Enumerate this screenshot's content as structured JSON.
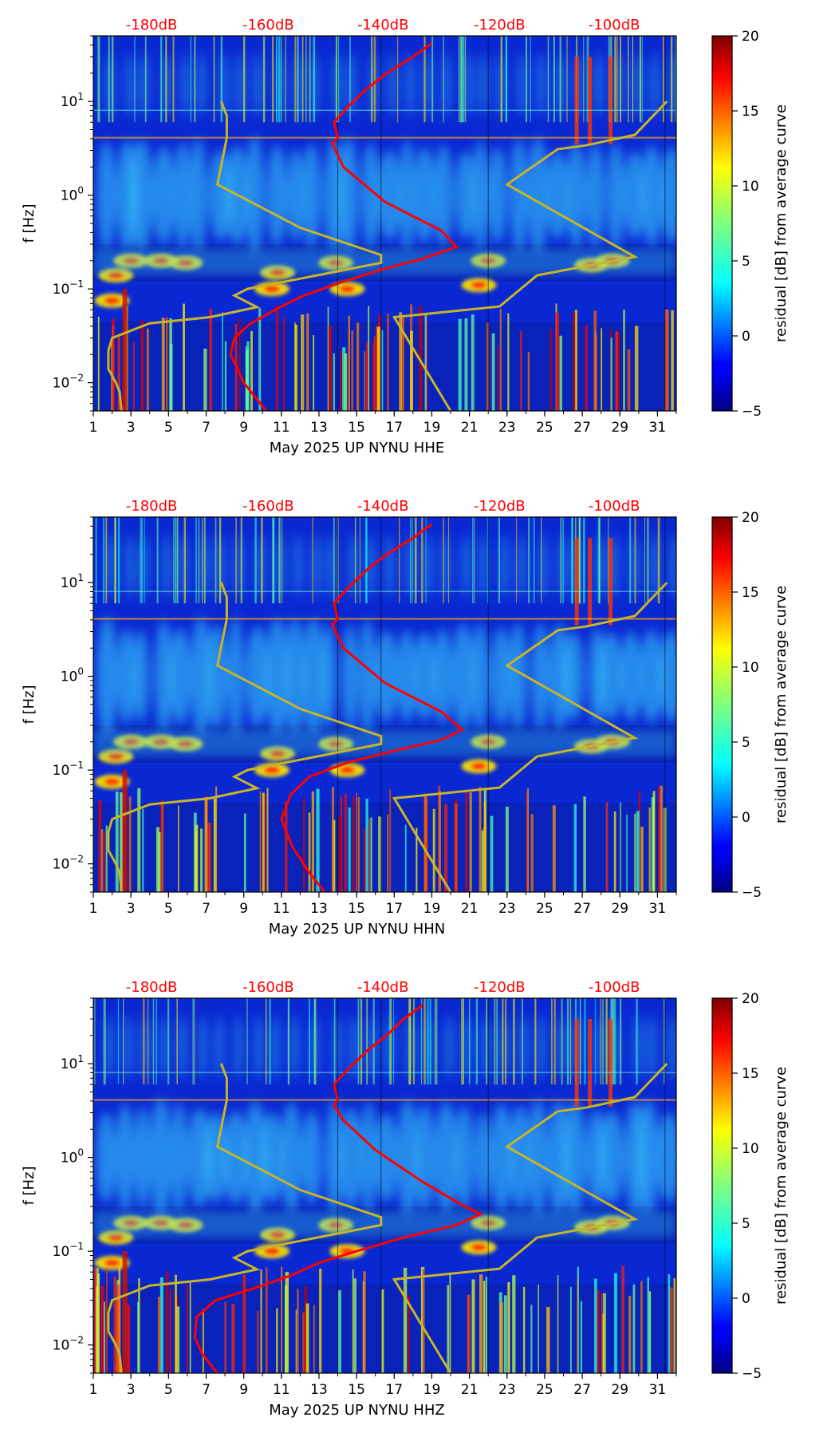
{
  "chart_data": [
    {
      "type": "heatmap",
      "xlabel": "May 2025 UP NYNU  HHE",
      "ylabel": "f [Hz]",
      "x_ticks": [
        "1",
        "3",
        "5",
        "7",
        "9",
        "11",
        "13",
        "15",
        "17",
        "19",
        "21",
        "23",
        "25",
        "27",
        "29",
        "31"
      ],
      "x_range": [
        1,
        32
      ],
      "y_scale": "log",
      "y_range": [
        0.005,
        50
      ],
      "y_ticks": [
        0.01,
        0.1,
        1,
        10
      ],
      "top_labels": [
        "-180dB",
        "-160dB",
        "-140dB",
        "-120dB",
        "-100dB"
      ],
      "top_label_days": [
        4.1,
        10.3,
        16.4,
        22.6,
        28.7
      ],
      "colorbar_label": "residual [dB] from average curve",
      "colorbar_ticks": [
        "20",
        "15",
        "10",
        "5",
        "0",
        "−5"
      ],
      "colorbar_range": [
        -5,
        20
      ],
      "reference_curves": {
        "color": "#c8b428",
        "left": [
          [
            2.5,
            0.005
          ],
          [
            2.4,
            0.008
          ],
          [
            2.2,
            0.01
          ],
          [
            1.8,
            0.014
          ],
          [
            1.8,
            0.022
          ],
          [
            2.0,
            0.03
          ],
          [
            4,
            0.043
          ],
          [
            7.2,
            0.05
          ],
          [
            9.7,
            0.064
          ],
          [
            8.5,
            0.085
          ],
          [
            9.2,
            0.1
          ],
          [
            16.3,
            0.19
          ],
          [
            16.3,
            0.23
          ],
          [
            12.0,
            0.45
          ],
          [
            7.6,
            1.3
          ],
          [
            8.1,
            4.1
          ],
          [
            8.1,
            7
          ],
          [
            7.8,
            10
          ]
        ],
        "right": [
          [
            20,
            0.005
          ],
          [
            17,
            0.05
          ],
          [
            22.6,
            0.065
          ],
          [
            24.6,
            0.14
          ],
          [
            29.8,
            0.22
          ],
          [
            23,
            1.3
          ],
          [
            25.7,
            3.1
          ],
          [
            27.2,
            3.4
          ],
          [
            29.8,
            4.4
          ],
          [
            31.5,
            10
          ]
        ]
      },
      "median_curve": {
        "color": "#ff0000",
        "points": [
          [
            10.2,
            0.005
          ],
          [
            9.0,
            0.01
          ],
          [
            8.3,
            0.02
          ],
          [
            8.5,
            0.03
          ],
          [
            9.3,
            0.042
          ],
          [
            11.0,
            0.065
          ],
          [
            12.2,
            0.085
          ],
          [
            14.3,
            0.12
          ],
          [
            16.3,
            0.16
          ],
          [
            18.5,
            0.21
          ],
          [
            20.3,
            0.28
          ],
          [
            19.5,
            0.42
          ],
          [
            16.5,
            0.85
          ],
          [
            14.3,
            2.0
          ],
          [
            13.7,
            3.6
          ],
          [
            14.0,
            4.1
          ],
          [
            13.8,
            6
          ],
          [
            14.6,
            9
          ],
          [
            15.6,
            14
          ],
          [
            16.6,
            20
          ],
          [
            18.0,
            30
          ],
          [
            19.0,
            42
          ]
        ]
      }
    },
    {
      "type": "heatmap",
      "xlabel": "May 2025 UP NYNU  HHN",
      "ylabel": "f [Hz]",
      "x_ticks": [
        "1",
        "3",
        "5",
        "7",
        "9",
        "11",
        "13",
        "15",
        "17",
        "19",
        "21",
        "23",
        "25",
        "27",
        "29",
        "31"
      ],
      "x_range": [
        1,
        32
      ],
      "y_scale": "log",
      "y_range": [
        0.005,
        50
      ],
      "y_ticks": [
        0.01,
        0.1,
        1,
        10
      ],
      "top_labels": [
        "-180dB",
        "-160dB",
        "-140dB",
        "-120dB",
        "-100dB"
      ],
      "top_label_days": [
        4.1,
        10.3,
        16.4,
        22.6,
        28.7
      ],
      "colorbar_label": "residual [dB] from average curve",
      "colorbar_ticks": [
        "20",
        "15",
        "10",
        "5",
        "0",
        "−5"
      ],
      "colorbar_range": [
        -5,
        20
      ],
      "reference_curves": {
        "color": "#c8b428",
        "left": [
          [
            2.5,
            0.005
          ],
          [
            2.4,
            0.008
          ],
          [
            2.2,
            0.01
          ],
          [
            1.8,
            0.014
          ],
          [
            1.8,
            0.022
          ],
          [
            2.0,
            0.03
          ],
          [
            4,
            0.043
          ],
          [
            7.2,
            0.05
          ],
          [
            9.7,
            0.064
          ],
          [
            8.5,
            0.085
          ],
          [
            9.2,
            0.1
          ],
          [
            16.3,
            0.19
          ],
          [
            16.3,
            0.23
          ],
          [
            12.0,
            0.45
          ],
          [
            7.6,
            1.3
          ],
          [
            8.1,
            4.1
          ],
          [
            8.1,
            7
          ],
          [
            7.8,
            10
          ]
        ],
        "right": [
          [
            20,
            0.005
          ],
          [
            17,
            0.05
          ],
          [
            22.6,
            0.065
          ],
          [
            24.6,
            0.14
          ],
          [
            29.8,
            0.22
          ],
          [
            23,
            1.3
          ],
          [
            25.7,
            3.1
          ],
          [
            27.2,
            3.4
          ],
          [
            29.8,
            4.4
          ],
          [
            31.5,
            10
          ]
        ]
      },
      "median_curve": {
        "color": "#ff0000",
        "points": [
          [
            13.3,
            0.005
          ],
          [
            12.5,
            0.008
          ],
          [
            11.6,
            0.015
          ],
          [
            11.0,
            0.03
          ],
          [
            11.5,
            0.055
          ],
          [
            12.5,
            0.085
          ],
          [
            14.5,
            0.12
          ],
          [
            17.0,
            0.16
          ],
          [
            19.5,
            0.21
          ],
          [
            20.6,
            0.27
          ],
          [
            19.5,
            0.42
          ],
          [
            16.5,
            0.85
          ],
          [
            14.3,
            2.0
          ],
          [
            13.7,
            3.6
          ],
          [
            14.0,
            4.1
          ],
          [
            13.8,
            6
          ],
          [
            14.6,
            9
          ],
          [
            15.6,
            14
          ],
          [
            16.6,
            20
          ],
          [
            18.0,
            30
          ],
          [
            19.0,
            42
          ]
        ]
      }
    },
    {
      "type": "heatmap",
      "xlabel": "May 2025 UP NYNU  HHZ",
      "ylabel": "f [Hz]",
      "x_ticks": [
        "1",
        "3",
        "5",
        "7",
        "9",
        "11",
        "13",
        "15",
        "17",
        "19",
        "21",
        "23",
        "25",
        "27",
        "29",
        "31"
      ],
      "x_range": [
        1,
        32
      ],
      "y_scale": "log",
      "y_range": [
        0.005,
        50
      ],
      "y_ticks": [
        0.01,
        0.1,
        1,
        10
      ],
      "top_labels": [
        "-180dB",
        "-160dB",
        "-140dB",
        "-120dB",
        "-100dB"
      ],
      "top_label_days": [
        4.1,
        10.3,
        16.4,
        22.6,
        28.7
      ],
      "colorbar_label": "residual [dB] from average curve",
      "colorbar_ticks": [
        "20",
        "15",
        "10",
        "5",
        "0",
        "−5"
      ],
      "colorbar_range": [
        -5,
        20
      ],
      "reference_curves": {
        "color": "#c8b428",
        "left": [
          [
            2.5,
            0.005
          ],
          [
            2.4,
            0.008
          ],
          [
            2.2,
            0.01
          ],
          [
            1.8,
            0.014
          ],
          [
            1.8,
            0.022
          ],
          [
            2.0,
            0.03
          ],
          [
            4,
            0.043
          ],
          [
            7.2,
            0.05
          ],
          [
            9.7,
            0.064
          ],
          [
            8.5,
            0.085
          ],
          [
            9.2,
            0.1
          ],
          [
            16.3,
            0.19
          ],
          [
            16.3,
            0.23
          ],
          [
            12.0,
            0.45
          ],
          [
            7.6,
            1.3
          ],
          [
            8.1,
            4.1
          ],
          [
            8.1,
            7
          ],
          [
            7.8,
            10
          ]
        ],
        "right": [
          [
            20,
            0.005
          ],
          [
            17,
            0.05
          ],
          [
            22.6,
            0.065
          ],
          [
            24.6,
            0.14
          ],
          [
            29.8,
            0.22
          ],
          [
            23,
            1.3
          ],
          [
            25.7,
            3.1
          ],
          [
            27.2,
            3.4
          ],
          [
            29.8,
            4.4
          ],
          [
            31.5,
            10
          ]
        ]
      },
      "median_curve": {
        "color": "#ff0000",
        "points": [
          [
            7.6,
            0.005
          ],
          [
            6.8,
            0.008
          ],
          [
            6.4,
            0.012
          ],
          [
            6.5,
            0.02
          ],
          [
            7.5,
            0.03
          ],
          [
            9.5,
            0.04
          ],
          [
            11.5,
            0.055
          ],
          [
            13.0,
            0.075
          ],
          [
            15.0,
            0.1
          ],
          [
            17.5,
            0.14
          ],
          [
            20.3,
            0.19
          ],
          [
            21.6,
            0.25
          ],
          [
            20.5,
            0.32
          ],
          [
            18.5,
            0.55
          ],
          [
            16.0,
            1.2
          ],
          [
            14.3,
            2.5
          ],
          [
            13.8,
            3.6
          ],
          [
            14.0,
            4.1
          ],
          [
            13.8,
            6
          ],
          [
            14.6,
            9
          ],
          [
            15.6,
            14
          ],
          [
            16.6,
            20
          ],
          [
            17.5,
            30
          ],
          [
            18.5,
            42
          ]
        ]
      }
    }
  ]
}
